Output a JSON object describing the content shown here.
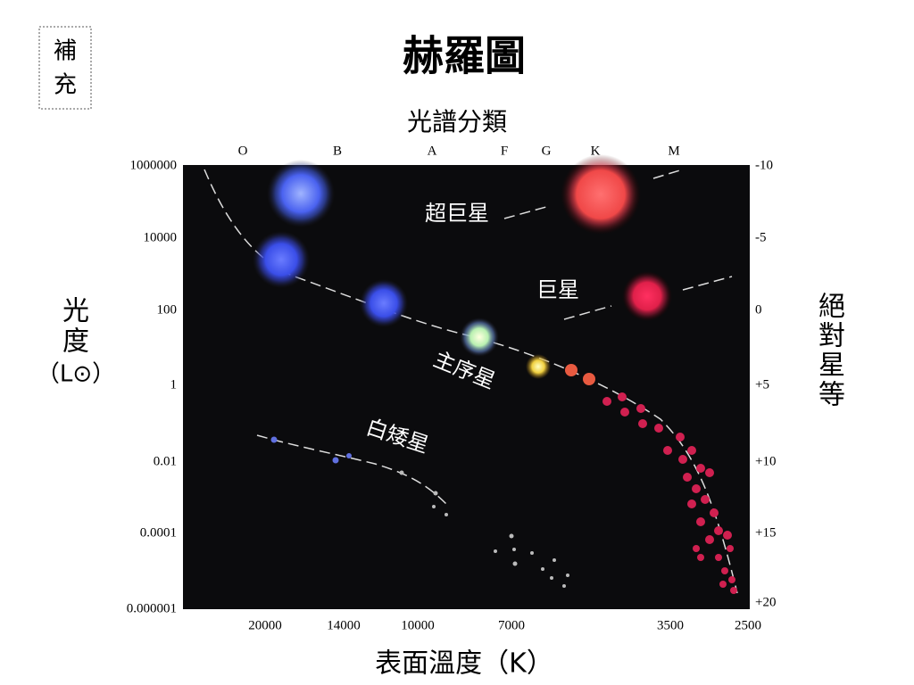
{
  "badge": [
    "補",
    "充"
  ],
  "title": "赫羅圖",
  "top_axis_title": "光譜分類",
  "spectral_classes": [
    "O",
    "B",
    "A",
    "F",
    "G",
    "K",
    "M"
  ],
  "left_axis_title": [
    "光",
    "度",
    "（L⊙）"
  ],
  "left_ticks": [
    "1000000",
    "10000",
    "100",
    "1",
    "0.01",
    "0.0001",
    "0.000001"
  ],
  "right_axis_title": [
    "絕",
    "對",
    "星",
    "等"
  ],
  "right_ticks": [
    "-10",
    "-5",
    "0",
    "+5",
    "+10",
    "+15",
    "+20"
  ],
  "bottom_ticks": [
    "20000",
    "14000",
    "10000",
    "7000",
    "3500",
    "2500"
  ],
  "bottom_axis_title": "表面溫度（K）",
  "regions": {
    "supergiants": "超巨星",
    "giants": "巨星",
    "main_sequence": "主序星",
    "white_dwarfs": "白矮星"
  }
}
